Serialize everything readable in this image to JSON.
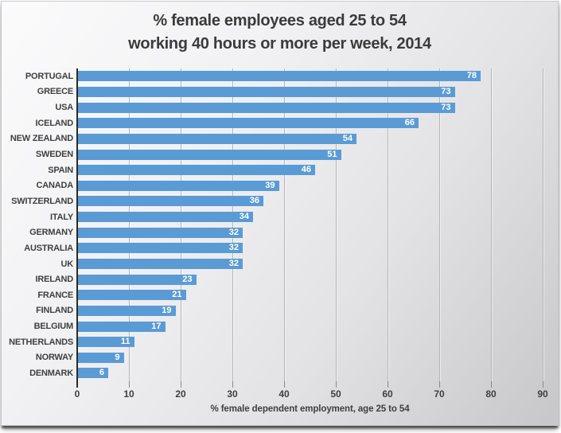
{
  "chart_data": {
    "type": "bar",
    "orientation": "horizontal",
    "title_line1": "% female employees aged 25 to 54",
    "title_line2": "working 40 hours or more per week, 2014",
    "xlabel": "% female dependent employment, age 25 to 54",
    "categories": [
      "PORTUGAL",
      "GREECE",
      "USA",
      "ICELAND",
      "NEW ZEALAND",
      "SWEDEN",
      "SPAIN",
      "CANADA",
      "SWITZERLAND",
      "ITALY",
      "GERMANY",
      "AUSTRALIA",
      "UK",
      "IRELAND",
      "FRANCE",
      "FINLAND",
      "BELGIUM",
      "NETHERLANDS",
      "NORWAY",
      "DENMARK"
    ],
    "values": [
      78,
      73,
      73,
      66,
      54,
      51,
      46,
      39,
      36,
      34,
      32,
      32,
      32,
      23,
      21,
      19,
      17,
      11,
      9,
      6
    ],
    "xlim": [
      0,
      90
    ],
    "xticks": [
      0,
      10,
      20,
      30,
      40,
      50,
      60,
      70,
      80,
      90
    ],
    "grid": true,
    "legend_position": "none",
    "value_labels": "inside-end",
    "bar_color": "#5b9bd5",
    "value_label_color": "#ffffff",
    "text_color": "#3f3f3f",
    "axis_line_color": "#2b2b2b",
    "gridline_color": "#b5b5b7"
  }
}
